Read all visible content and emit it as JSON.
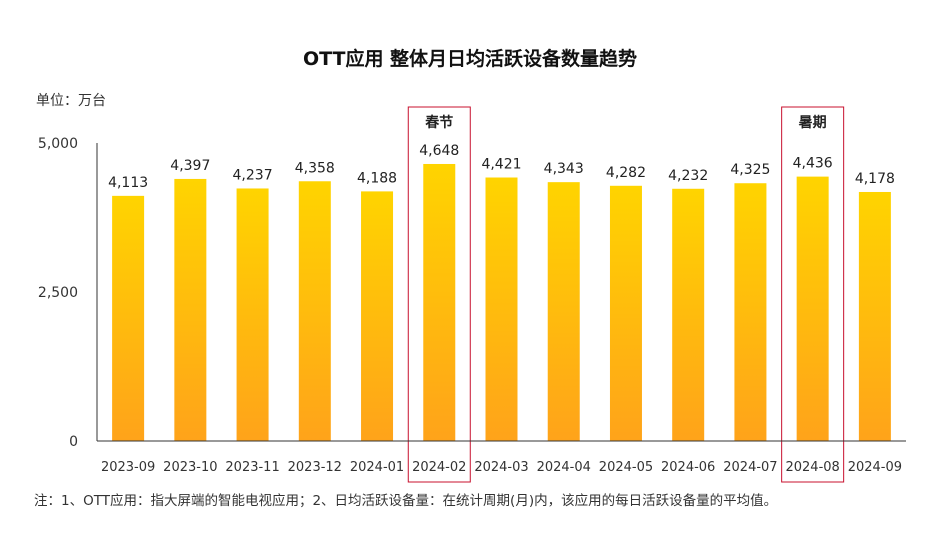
{
  "chart_data": {
    "type": "bar",
    "title": "OTT应用 整体月日均活跃设备数量趋势",
    "unit_label": "单位：万台",
    "categories": [
      "2023-09",
      "2023-10",
      "2023-11",
      "2023-12",
      "2024-01",
      "2024-02",
      "2024-03",
      "2024-04",
      "2024-05",
      "2024-06",
      "2024-07",
      "2024-08",
      "2024-09"
    ],
    "values": [
      4113,
      4397,
      4237,
      4358,
      4188,
      4648,
      4421,
      4343,
      4282,
      4232,
      4325,
      4436,
      4178
    ],
    "value_labels": [
      "4,113",
      "4,397",
      "4,237",
      "4,358",
      "4,188",
      "4,648",
      "4,421",
      "4,343",
      "4,282",
      "4,232",
      "4,325",
      "4,436",
      "4,178"
    ],
    "ylim": [
      0,
      5000
    ],
    "yticks": [
      0,
      2500,
      5000
    ],
    "ytick_labels": [
      "0",
      "2,500",
      "5,000"
    ],
    "grid": false,
    "highlights": [
      {
        "category": "2024-02",
        "label": "春节"
      },
      {
        "category": "2024-08",
        "label": "暑期"
      }
    ],
    "colors": {
      "bar_top": "#FFD400",
      "bar_bottom": "#FFA31A",
      "highlight_box": "#C8102E",
      "axis": "#333333"
    },
    "footnote": "注：1、OTT应用：指大屏端的智能电视应用；2、日均活跃设备量：在统计周期(月)内，该应用的每日活跃设备量的平均值。"
  }
}
